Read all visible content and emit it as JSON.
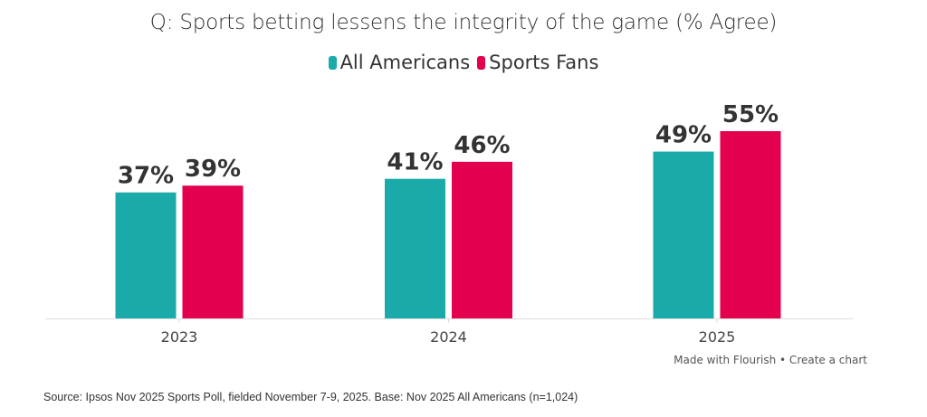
{
  "chart_data": {
    "type": "bar",
    "title": "Q: Sports betting lessens the integrity of the game (% Agree)",
    "categories": [
      "2023",
      "2024",
      "2025"
    ],
    "series": [
      {
        "name": "All Americans",
        "color": "#1aaaa9",
        "values": [
          37,
          41,
          49
        ],
        "labels": [
          "37%",
          "41%",
          "49%"
        ]
      },
      {
        "name": "Sports Fans",
        "color": "#e3004f",
        "values": [
          39,
          46,
          55
        ],
        "labels": [
          "39%",
          "46%",
          "55%"
        ]
      }
    ],
    "xlabel": "",
    "ylabel": "",
    "ylim": [
      0,
      55
    ],
    "grid": false,
    "legend_position": "top-center"
  },
  "footer": {
    "credit": "Made with Flourish • Create a chart",
    "source": "Source: Ipsos Nov 2025 Sports Poll, fielded November 7-9, 2025. Base: Nov 2025 All Americans (n=1,024)"
  }
}
